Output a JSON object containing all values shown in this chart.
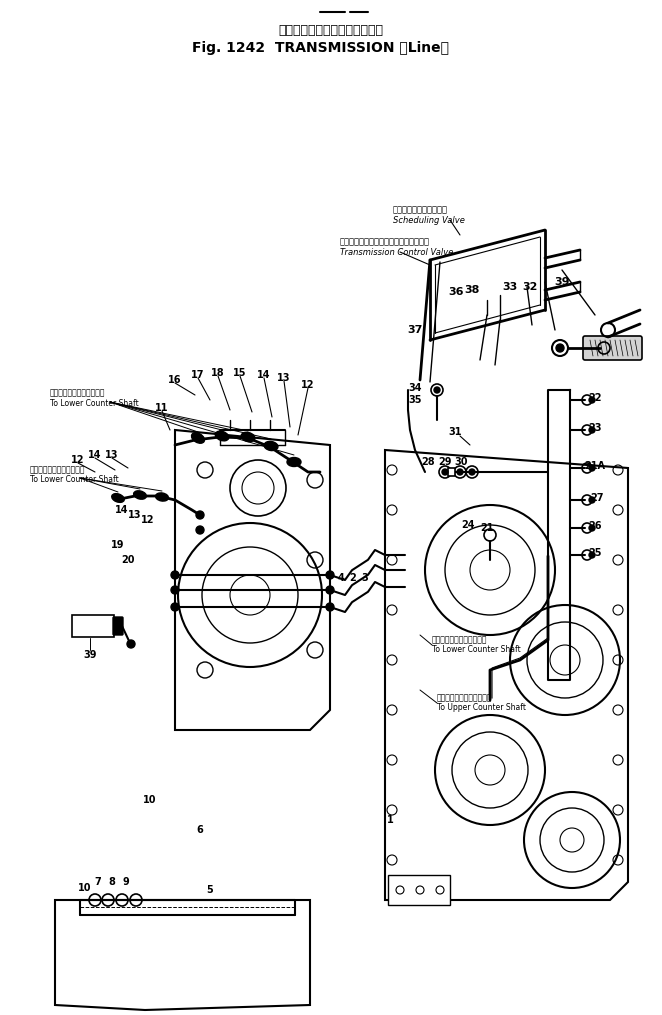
{
  "title_jp": "トランスミッション（ライン）",
  "title_en": "Fig. 1242  TRANSMISSION （Line）",
  "bg": "#ffffff",
  "label_sched_jp": "スケジューリングバルブ",
  "label_sched_en": "Scheduling Valve",
  "label_tcv_jp": "トランスミッションコントロールバルブ",
  "label_tcv_en": "Transmission Control Valve",
  "label_lcs1_jp": "ロワーカウンタシャフトへ",
  "label_lcs1_en": "To Lower Counter Shaft",
  "label_lcs2_jp": "ロワーカウンタシャフトへ",
  "label_lcs2_en": "To Lower Counter Shaft",
  "label_lcs3_jp": "ロワーカウンタシャフトへ",
  "label_lcs3_en": "To Lower Counter Shaft",
  "label_ucs_jp": "アッパカウンタシャフトへ",
  "label_ucs_en": "To Upper Counter Shaft",
  "fig_width": 6.62,
  "fig_height": 10.15,
  "dpi": 100
}
